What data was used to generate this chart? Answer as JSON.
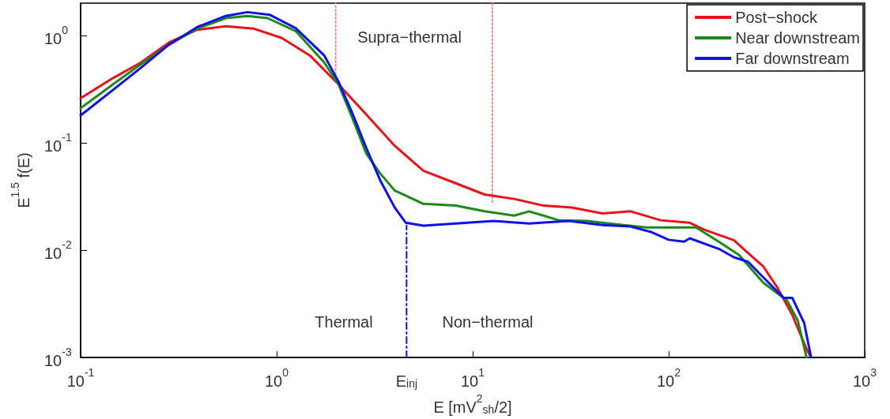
{
  "chart_data": {
    "type": "line",
    "xlabel": "E [mV$^{2}$$_{sh}$/2]",
    "ylabel": "E$^{1.5}$ f(E)",
    "log": "xy",
    "grid": false,
    "legend": "top right",
    "marker": "none",
    "line_style": "solid",
    "xlim": [
      0.1,
      1000
    ],
    "ylim": [
      0.001,
      2
    ],
    "xticks": [
      {
        "value": 0.1,
        "label": "10$^{-1}$"
      },
      {
        "value": 1,
        "label": "10$^{0}$"
      },
      {
        "value": 4.6,
        "label": "E$_{inj}$"
      },
      {
        "value": 10,
        "label": "10$^{1}$"
      },
      {
        "value": 100,
        "label": "10$^{2}$"
      },
      {
        "value": 1000,
        "label": "10$^{3}$"
      }
    ],
    "yticks": [
      {
        "value": 0.001,
        "label": "10$^{-3}$"
      },
      {
        "value": 0.01,
        "label": "10$^{-2}$"
      },
      {
        "value": 0.1,
        "label": "10$^{-1}$"
      },
      {
        "value": 1,
        "label": "10$^{0}$"
      }
    ],
    "series": [
      {
        "name": "Post−shock",
        "color": "#e8141c",
        "x": [
          0.1,
          0.146,
          0.203,
          0.282,
          0.394,
          0.55,
          0.76,
          1.06,
          1.48,
          2.07,
          2.87,
          4.0,
          5.6,
          8.2,
          11.5,
          16.3,
          23,
          32,
          46,
          64,
          91,
          128,
          152,
          215,
          254,
          303,
          358,
          427,
          505,
          525
        ],
        "values": [
          0.26,
          0.4,
          0.56,
          0.86,
          1.13,
          1.22,
          1.16,
          0.95,
          0.65,
          0.35,
          0.183,
          0.094,
          0.055,
          0.042,
          0.033,
          0.03,
          0.026,
          0.025,
          0.022,
          0.023,
          0.019,
          0.018,
          0.0155,
          0.0124,
          0.0094,
          0.0071,
          0.0045,
          0.0025,
          0.0012,
          0.00105
        ]
      },
      {
        "name": "Near downstream",
        "color": "#1a8a1a",
        "x": [
          0.1,
          0.146,
          0.203,
          0.282,
          0.394,
          0.55,
          0.71,
          0.9,
          1.25,
          1.75,
          2.07,
          2.43,
          2.87,
          3.37,
          4.0,
          5.6,
          8.2,
          11.5,
          16.3,
          19.4,
          23,
          27.4,
          38.6,
          54,
          77,
          108,
          138,
          180,
          229,
          303,
          401,
          456,
          505
        ],
        "values": [
          0.21,
          0.35,
          0.54,
          0.82,
          1.16,
          1.45,
          1.52,
          1.45,
          1.1,
          0.56,
          0.35,
          0.171,
          0.079,
          0.052,
          0.036,
          0.027,
          0.026,
          0.023,
          0.021,
          0.023,
          0.021,
          0.019,
          0.0187,
          0.0174,
          0.0163,
          0.0163,
          0.0163,
          0.012,
          0.009,
          0.005,
          0.0034,
          0.0022,
          0.001
        ]
      },
      {
        "name": "Far downstream",
        "color": "#1010e8",
        "x": [
          0.1,
          0.146,
          0.203,
          0.282,
          0.394,
          0.55,
          0.71,
          0.92,
          1.25,
          1.75,
          2.07,
          2.43,
          2.87,
          3.37,
          4.0,
          4.56,
          5.6,
          8.2,
          12.8,
          19.4,
          31,
          46,
          64,
          82,
          91,
          100,
          120,
          128,
          180,
          215,
          254,
          303,
          386,
          427,
          491,
          533
        ],
        "values": [
          0.18,
          0.31,
          0.5,
          0.82,
          1.2,
          1.52,
          1.65,
          1.56,
          1.17,
          0.65,
          0.37,
          0.19,
          0.089,
          0.045,
          0.025,
          0.018,
          0.0169,
          0.0177,
          0.0187,
          0.0177,
          0.0187,
          0.0171,
          0.0166,
          0.0147,
          0.0135,
          0.0125,
          0.012,
          0.0129,
          0.0103,
          0.0086,
          0.0078,
          0.0056,
          0.0036,
          0.0036,
          0.0021,
          0.001
        ]
      },
      {
        "color": "#f08a8a",
        "line_style": "dotted",
        "x": [
          2,
          2
        ],
        "values": [
          0.4,
          2
        ]
      },
      {
        "color": "#f08a8a",
        "line_style": "dotted",
        "x": [
          12.6,
          12.6
        ],
        "values": [
          0.028,
          2
        ]
      },
      {
        "color": "#1010e8",
        "line_style": "dashed",
        "x": [
          4.6,
          4.6
        ],
        "values": [
          0.001,
          0.017
        ]
      }
    ],
    "annotations": [
      "Supra−thermal",
      "Thermal",
      "Non−thermal"
    ]
  }
}
